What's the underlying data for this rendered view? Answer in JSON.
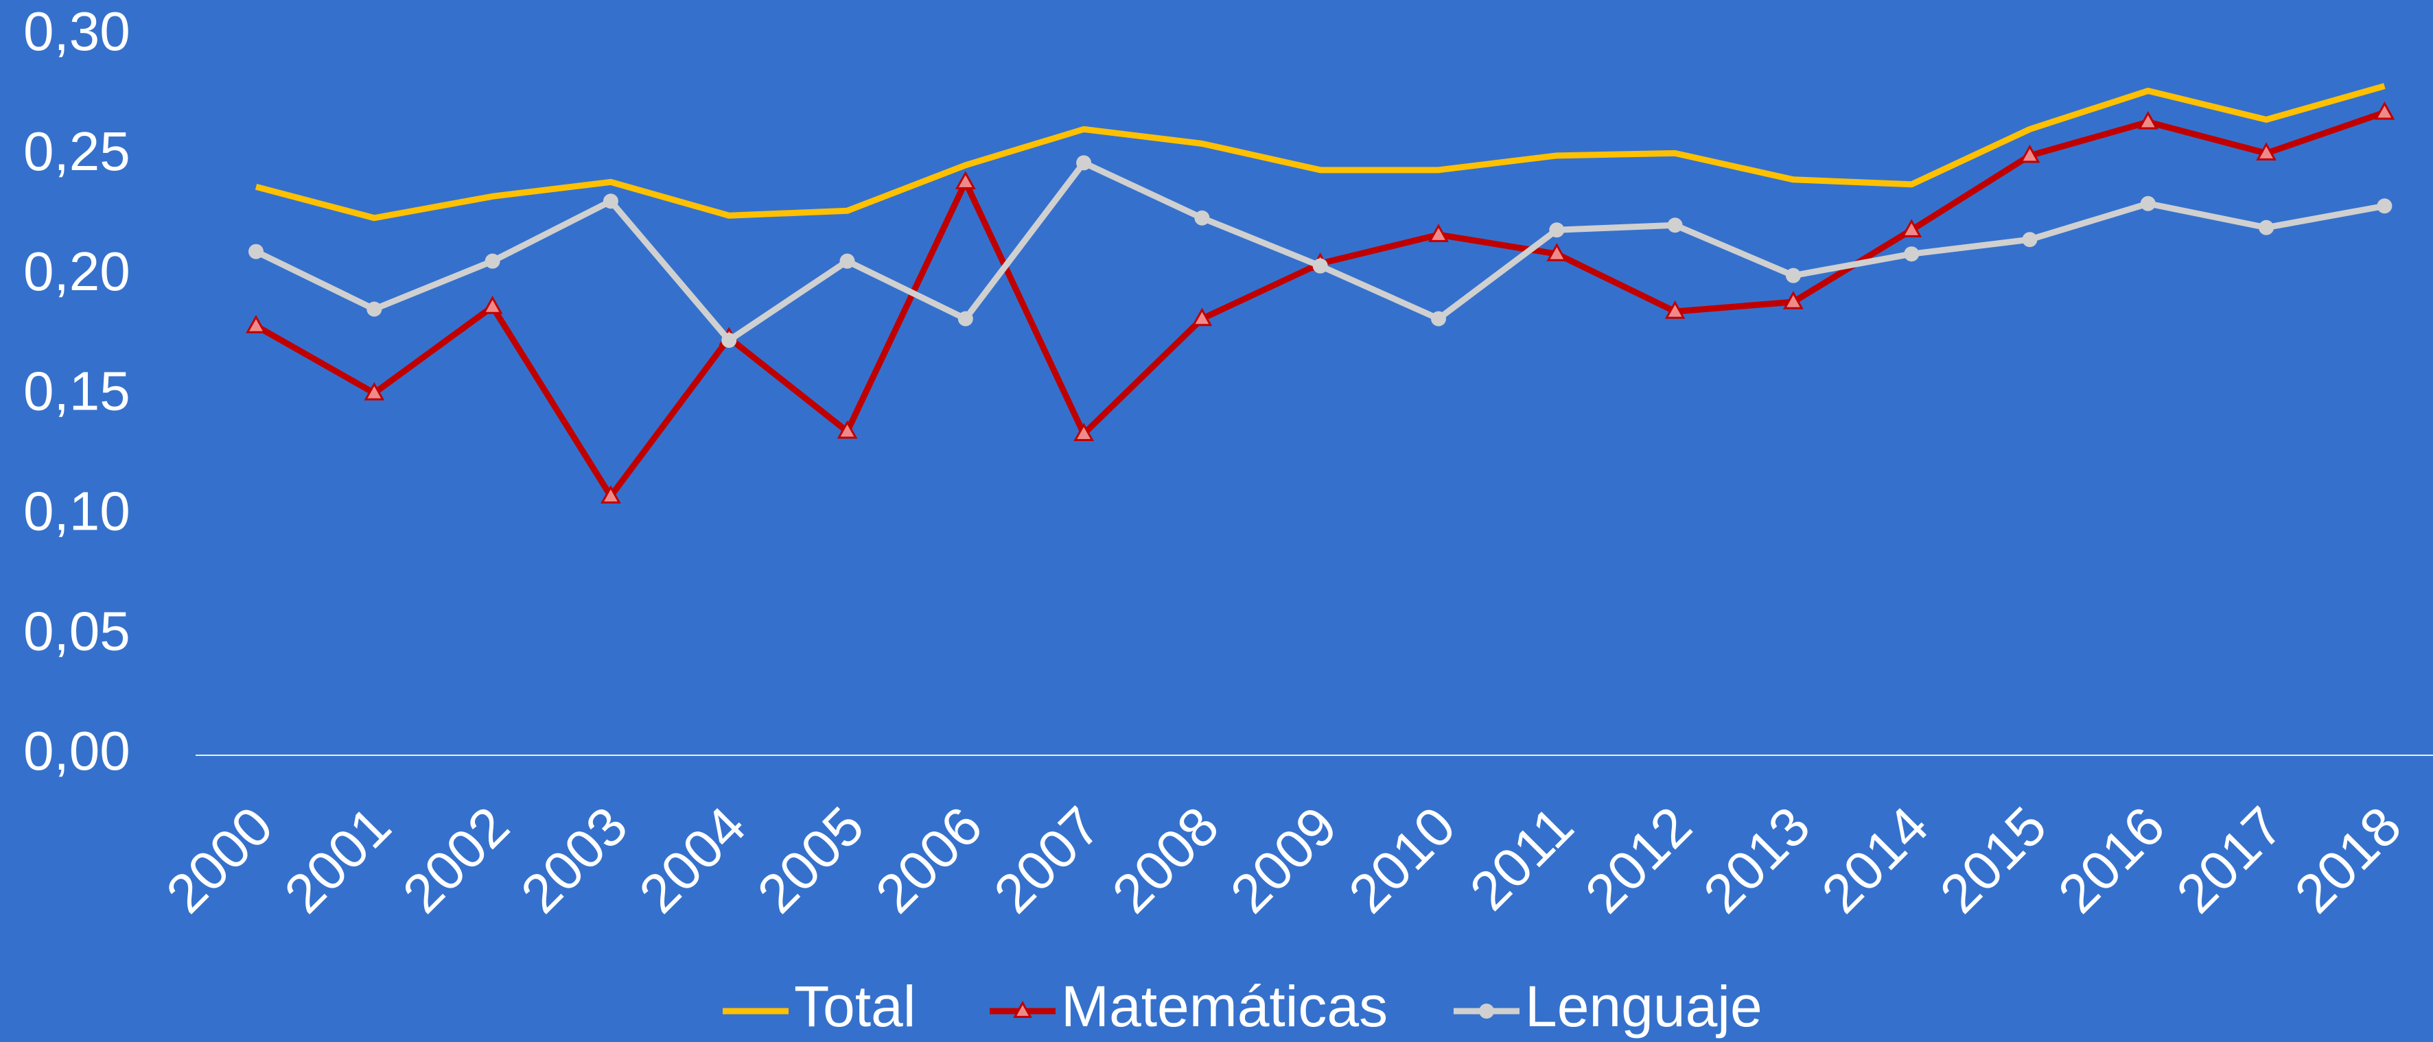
{
  "chart_data": {
    "type": "line",
    "categories": [
      "2000",
      "2001",
      "2002",
      "2003",
      "2004",
      "2005",
      "2006",
      "2007",
      "2008",
      "2009",
      "2010",
      "2011",
      "2012",
      "2013",
      "2014",
      "2015",
      "2016",
      "2017",
      "2018"
    ],
    "series": [
      {
        "name": "Total",
        "color": "#ffc000",
        "marker": "none",
        "values": [
          0.237,
          0.224,
          0.233,
          0.239,
          0.225,
          0.227,
          0.246,
          0.261,
          0.255,
          0.244,
          0.244,
          0.25,
          0.251,
          0.24,
          0.238,
          0.261,
          0.277,
          0.265,
          0.279
        ]
      },
      {
        "name": "Matemáticas",
        "color": "#c00000",
        "marker": "triangle",
        "marker_fill": "#f08a8a",
        "values": [
          0.179,
          0.151,
          0.187,
          0.108,
          0.174,
          0.135,
          0.239,
          0.134,
          0.182,
          0.205,
          0.217,
          0.209,
          0.185,
          0.189,
          0.219,
          0.25,
          0.264,
          0.251,
          0.268
        ]
      },
      {
        "name": "Lenguaje",
        "color": "#d0d0d0",
        "marker": "circle",
        "marker_fill": "#d0d0d0",
        "values": [
          0.21,
          0.186,
          0.206,
          0.231,
          0.173,
          0.206,
          0.182,
          0.247,
          0.224,
          0.204,
          0.182,
          0.219,
          0.221,
          0.2,
          0.209,
          0.215,
          0.23,
          0.22,
          0.229
        ]
      }
    ],
    "ylim": [
      0,
      0.3
    ],
    "yticks": [
      {
        "value": 0,
        "label": "0,00"
      },
      {
        "value": 0.05,
        "label": "0,05"
      },
      {
        "value": 0.1,
        "label": "0,10"
      },
      {
        "value": 0.15,
        "label": "0,15"
      },
      {
        "value": 0.2,
        "label": "0,20"
      },
      {
        "value": 0.25,
        "label": "0,25"
      },
      {
        "value": 0.3,
        "label": "0,30"
      }
    ],
    "grid": false,
    "legend": "bottom"
  }
}
